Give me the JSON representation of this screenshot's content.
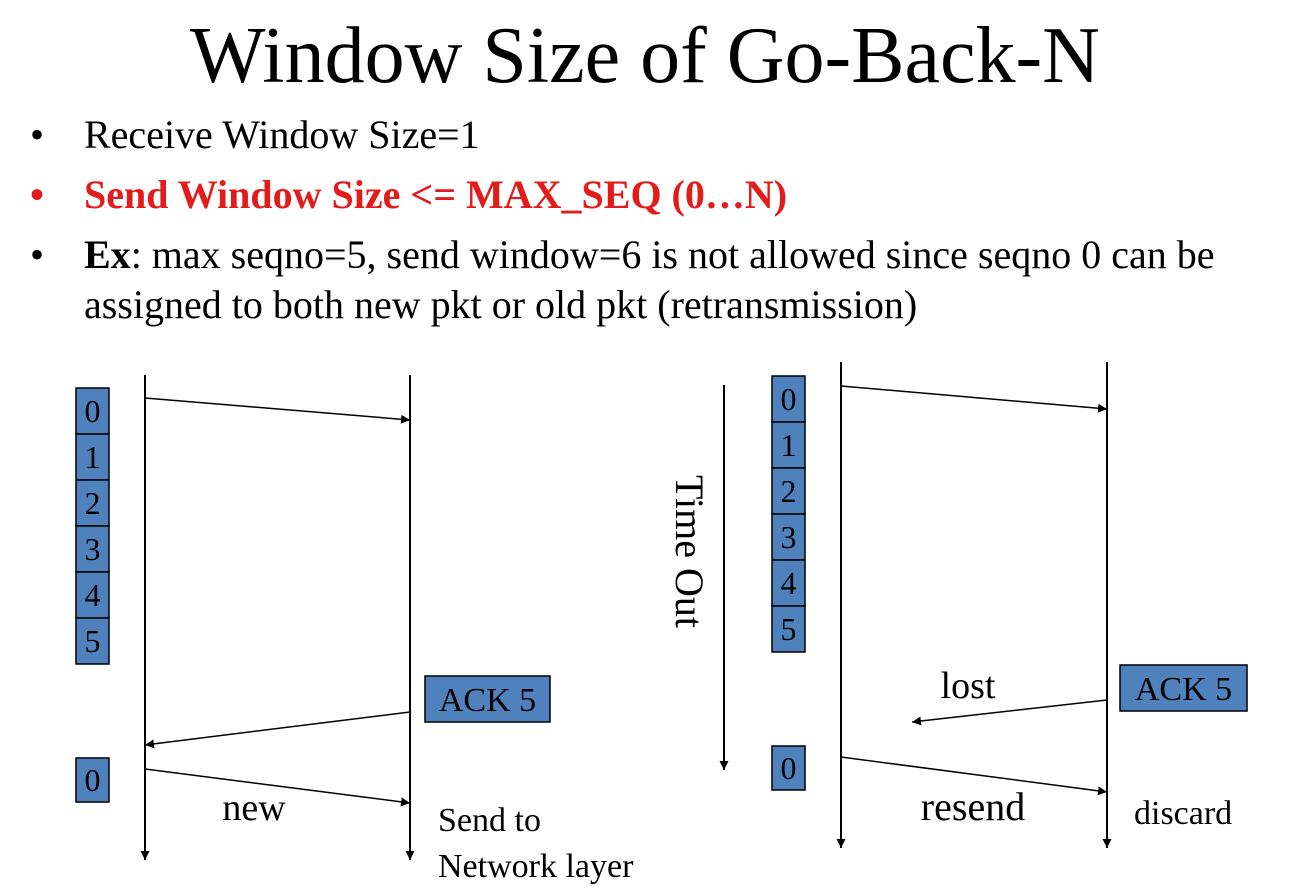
{
  "title": "Window Size of Go-Back-N",
  "bullets": {
    "b1": "Receive Window Size=1",
    "b2": "Send Window Size <= MAX_SEQ (0…N)",
    "b3_bold": "Ex",
    "b3_rest": ": max seqno=5, send window=6 is not allowed since seqno 0 can be assigned to both new pkt or old pkt (retransmission)",
    "marker": "•"
  },
  "colors": {
    "box_fill": "#4f81bd",
    "emphasis": "#e31b1b"
  },
  "left_diagram": {
    "window": [
      "0",
      "1",
      "2",
      "3",
      "4",
      "5"
    ],
    "ack": "ACK 5",
    "next_seq": "0",
    "new_label": "new",
    "receiver_label_1": "Send to",
    "receiver_label_2": "Network layer"
  },
  "right_diagram": {
    "window": [
      "0",
      "1",
      "2",
      "3",
      "4",
      "5"
    ],
    "timeout": "Time Out",
    "lost": "lost",
    "ack": "ACK 5",
    "next_seq": "0",
    "resend": "resend",
    "discard": "discard"
  }
}
